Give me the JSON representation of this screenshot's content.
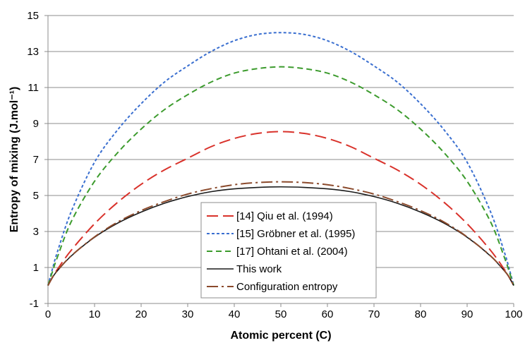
{
  "chart_data": {
    "type": "line",
    "title": "",
    "xlabel": "Atomic percent (C)",
    "ylabel": "Entropy of mixing (J.mol⁻¹)",
    "xlim": [
      0,
      100
    ],
    "ylim": [
      -1,
      15
    ],
    "xticks": [
      0,
      10,
      20,
      30,
      40,
      50,
      60,
      70,
      80,
      90,
      100
    ],
    "yticks": [
      -1,
      1,
      3,
      5,
      7,
      9,
      11,
      13,
      15
    ],
    "grid": "horizontal",
    "legend_position": "bottom-center",
    "x": [
      0,
      1,
      2,
      5,
      10,
      15,
      20,
      25,
      30,
      35,
      40,
      45,
      50,
      55,
      60,
      65,
      70,
      75,
      80,
      85,
      90,
      95,
      98,
      99,
      100
    ],
    "series": [
      {
        "name": "[14] Qiu et al. (1994)",
        "color": "#d9322b",
        "dash": "long-dash",
        "values": [
          0,
          0.47,
          0.89,
          1.96,
          3.43,
          4.63,
          5.62,
          6.42,
          7.07,
          7.71,
          8.17,
          8.45,
          8.55,
          8.45,
          8.17,
          7.71,
          7.07,
          6.42,
          5.62,
          4.63,
          3.43,
          1.96,
          0.89,
          0.47,
          0
        ]
      },
      {
        "name": "[15] Gröbner et al. (1995)",
        "color": "#3a6fd0",
        "dash": "short-dash",
        "values": [
          0,
          0.96,
          1.85,
          4.11,
          6.85,
          8.66,
          10.1,
          11.3,
          12.2,
          13.0,
          13.6,
          13.95,
          14.05,
          13.95,
          13.6,
          13.0,
          12.2,
          11.3,
          10.1,
          8.66,
          6.85,
          4.11,
          1.85,
          0.96,
          0
        ]
      },
      {
        "name": "[17] Ohtani et al. (2004)",
        "color": "#3c9b2d",
        "dash": "medium-dash",
        "values": [
          0,
          0.8,
          1.56,
          3.55,
          5.79,
          7.39,
          8.69,
          9.77,
          10.6,
          11.3,
          11.8,
          12.05,
          12.15,
          12.05,
          11.8,
          11.3,
          10.6,
          9.77,
          8.69,
          7.39,
          5.79,
          3.55,
          1.56,
          0.8,
          0
        ]
      },
      {
        "name": "This work",
        "color": "#1a1a1a",
        "dash": "solid",
        "values": [
          0,
          0.46,
          0.81,
          1.64,
          2.68,
          3.47,
          4.08,
          4.57,
          4.94,
          5.21,
          5.37,
          5.45,
          5.48,
          5.45,
          5.37,
          5.21,
          4.94,
          4.57,
          4.08,
          3.47,
          2.68,
          1.64,
          0.81,
          0.46,
          0
        ]
      },
      {
        "name": "Configuration entropy",
        "color": "#8b4a2c",
        "dash": "dash-dot",
        "values": [
          0,
          0.47,
          0.82,
          1.65,
          2.7,
          3.53,
          4.16,
          4.66,
          5.08,
          5.38,
          5.6,
          5.72,
          5.76,
          5.72,
          5.6,
          5.38,
          5.08,
          4.66,
          4.16,
          3.53,
          2.7,
          1.65,
          0.82,
          0.47,
          0
        ]
      }
    ]
  }
}
